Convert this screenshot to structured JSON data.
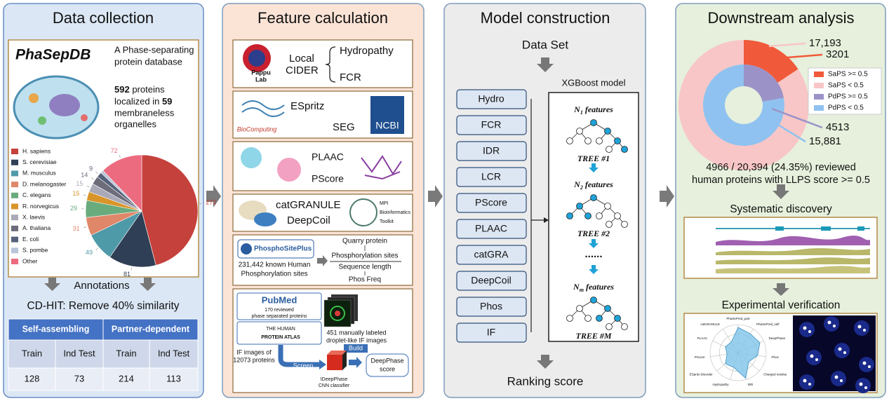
{
  "data_collection": {
    "title": "Data collection",
    "db_name": "PhaSepDB",
    "db_desc": [
      "A Phase-separating",
      "protein database"
    ],
    "summary": [
      "592",
      " proteins",
      "localized in ",
      "59",
      "membraneless",
      "organelles"
    ],
    "pie": {
      "labels": [
        "H. sapiens",
        "S. cerevisiae",
        "M. musculus",
        "D. melanogaster",
        "C. elegans",
        "R. norvegicus",
        "X. laevis",
        "A. thaliana",
        "E. coli",
        "S. pombe",
        "Other"
      ],
      "values": [
        272,
        81,
        49,
        31,
        29,
        15,
        15,
        14,
        9,
        5,
        72
      ],
      "value_labels": [
        "272",
        "81",
        "49",
        "31",
        "29",
        "15",
        "15",
        "14",
        "9",
        null,
        "72"
      ],
      "colors": [
        "#c5413c",
        "#2f3f55",
        "#4f9aa8",
        "#e0876a",
        "#6aab7e",
        "#d9952a",
        "#a9a9b8",
        "#6c6c7a",
        "#56627a",
        "#b8c4d8",
        "#ec6b7f"
      ]
    },
    "annotations": "Annotations",
    "cdhit": "CD-HIT: Remove 40% similarity",
    "table": {
      "groups": [
        "Self-assembling",
        "Partner-dependent"
      ],
      "columns": [
        "Train",
        "Ind Test",
        "Train",
        "Ind Test"
      ],
      "rows": [
        [
          128,
          73,
          214,
          113
        ]
      ]
    }
  },
  "feature_calculation": {
    "title": "Feature calculation",
    "cider": {
      "logo": [
        "Pappu",
        "Lab"
      ],
      "name": [
        "Local",
        "CIDER"
      ],
      "features": [
        "Hydropathy",
        "FCR"
      ]
    },
    "disorder": {
      "espritz": "ESpritz",
      "seg": "SEG",
      "logo": "BioComputing",
      "ncbi": "NCBI"
    },
    "plaac": {
      "plaac": "PLAAC",
      "pscore": "PScore"
    },
    "granule": {
      "catgranule": "catGRANULE",
      "deepcoil": "DeepCoil",
      "mpi": [
        "MPI",
        "Bioinformatics",
        "Toolkit"
      ]
    },
    "phos": {
      "logo": "PhosphoSitePlus",
      "desc": [
        "231,442 known Human",
        "Phosphorylation sites"
      ],
      "flow": [
        "Quarry protein",
        "Phosphorylation sites",
        "Sequence length",
        "Phos Freq"
      ]
    },
    "if": {
      "pubmed": "PubMed",
      "reviewed": [
        "170 reviewed",
        "phase separated proteins"
      ],
      "atlas": [
        "THE HUMAN",
        "PROTEIN ATLAS"
      ],
      "images": [
        "IF images of",
        "12073 proteins"
      ],
      "labeled": [
        "451 manually labeled",
        "droplet-like IF images"
      ],
      "build": "Build",
      "screen": "Screen",
      "cnn": [
        "IDeepPhase",
        "CNN classifier"
      ],
      "score": [
        "DeepPhase",
        "score"
      ]
    }
  },
  "model_construction": {
    "title": "Model construction",
    "dataset": "Data Set",
    "features": [
      "Hydro",
      "FCR",
      "IDR",
      "LCR",
      "PScore",
      "PLAAC",
      "catGRA",
      "DeepCoil",
      "Phos",
      "IF"
    ],
    "model": "XGBoost model",
    "trees": [
      {
        "var": "N",
        "sub": "1",
        "text": " features",
        "name": "TREE #1"
      },
      {
        "var": "N",
        "sub": "2",
        "text": " features",
        "name": "TREE #2"
      },
      {
        "var": "N",
        "sub": "m",
        "text": " features",
        "name": "TREE #M"
      }
    ],
    "ellipsis": "......",
    "output": "Ranking score"
  },
  "downstream_analysis": {
    "title": "Downstream analysis",
    "donut": {
      "outer": {
        "names": [
          "SaPS >= 0.5",
          "SaPS < 0.5"
        ],
        "values": [
          3201,
          17193
        ],
        "value_labels": [
          "3201",
          "17,193"
        ],
        "colors": [
          "#f05a3a",
          "#f8c6c6"
        ]
      },
      "inner": {
        "names": [
          "PdPS >= 0.5",
          "PdPS < 0.5"
        ],
        "values": [
          4513,
          15881
        ],
        "value_labels": [
          "4513",
          "15,881"
        ],
        "colors": [
          "#9b93c8",
          "#8fc2f0"
        ]
      }
    },
    "summary": [
      "4966 / 20,394 (24.35%) reviewed",
      "human proteins with LLPS score >= 0.5"
    ],
    "discovery": "Systematic discovery",
    "verification": "Experimental verification",
    "radar_labels": [
      "PhaSePred_part",
      "PhaSePred_self",
      "DeepPhase",
      "Phos",
      "Charged residue",
      "IDR",
      "Hydropathy",
      "ESpritz-Disorder",
      "PScore",
      "PLAAC",
      "catGRANULE"
    ]
  }
}
